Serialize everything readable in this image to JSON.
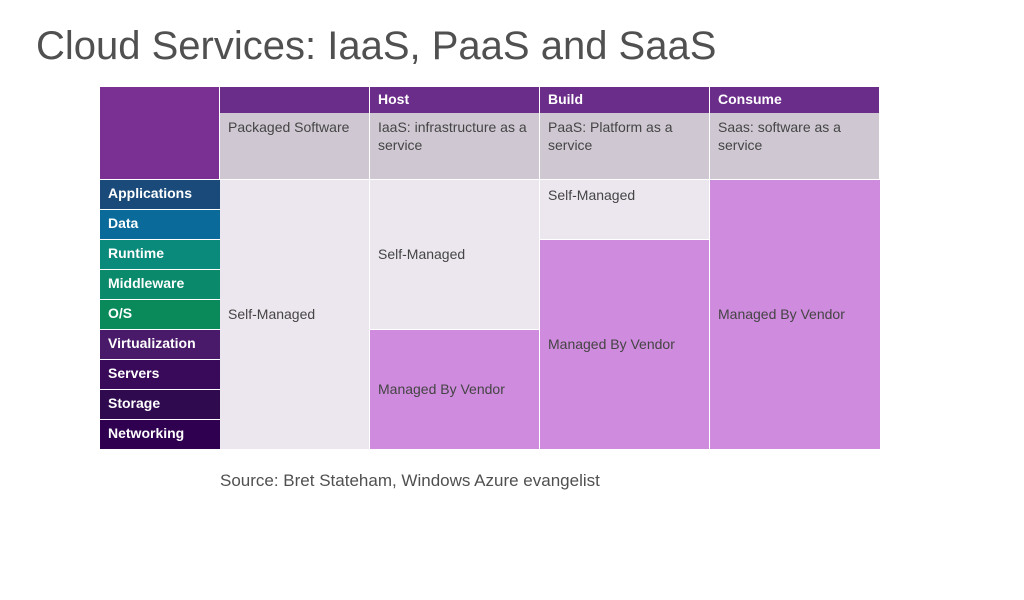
{
  "title": "Cloud Services: IaaS, PaaS and SaaS",
  "colors": {
    "header_bg": "#6b2d8a",
    "header_solid": "#7a2f92",
    "desc_bg": "#cfc8d3",
    "self_bg": "#ece7ef",
    "vendor_bg": "#cf8bdd",
    "layer_blue1": "#1a4a7a",
    "layer_blue2": "#0a6a9a",
    "layer_teal1": "#0a8a7a",
    "layer_teal2": "#0a8a6a",
    "layer_teal3": "#0a8a5a",
    "layer_purple1": "#4a1a6a",
    "layer_purple2": "#3a0a5a",
    "layer_purple3": "#2f0a4f",
    "layer_purple4": "#2f0050"
  },
  "header": {
    "c0": "",
    "c1": "",
    "c2": "Host",
    "c3": "Build",
    "c4": "Consume"
  },
  "desc": {
    "c0": "",
    "c1": "Packaged Software",
    "c2": "IaaS: infrastructure as a service",
    "c3": "PaaS: Platform as a service",
    "c4": "Saas: software as a service"
  },
  "layers": [
    "Applications",
    "Data",
    "Runtime",
    "Middleware",
    "O/S",
    "Virtualization",
    "Servers",
    "Storage",
    "Networking"
  ],
  "cells": {
    "self": "Self-Managed",
    "self2": "Self-Managed",
    "self3": " Self-Managed",
    "vendor": "Managed By Vendor",
    "vendor2": "Managed By Vendor",
    "vendor3": "Managed By Vendor"
  },
  "source": "Source: Bret Stateham, Windows Azure evangelist"
}
